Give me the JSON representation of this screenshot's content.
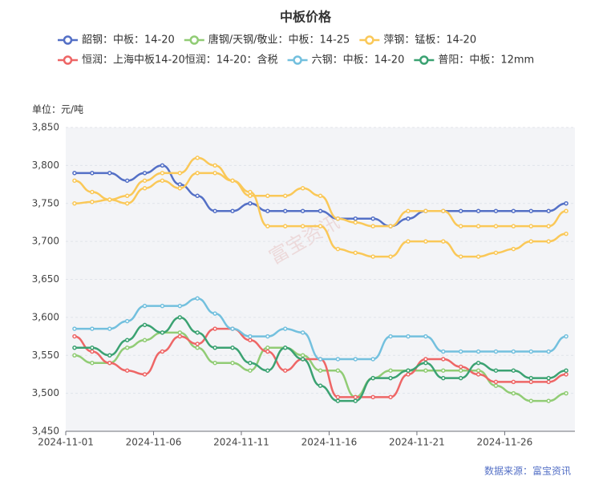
{
  "chart_data": {
    "type": "line",
    "title": "中板价格",
    "unit_label": "单位：元/吨",
    "source": "数据来源：富宝资讯",
    "watermark": "富宝资讯",
    "categories": [
      "2024-11-01",
      null,
      null,
      null,
      null,
      "2024-11-06",
      null,
      null,
      null,
      null,
      "2024-11-11",
      null,
      null,
      null,
      null,
      "2024-11-16",
      null,
      null,
      null,
      null,
      "2024-11-21",
      null,
      null,
      null,
      null,
      "2024-11-26",
      null,
      null,
      null
    ],
    "ylim": [
      3450,
      3850
    ],
    "yticks": [
      {
        "value": 3450,
        "label": "3,450"
      },
      {
        "value": 3500,
        "label": "3,500"
      },
      {
        "value": 3550,
        "label": "3,550"
      },
      {
        "value": 3600,
        "label": "3,600"
      },
      {
        "value": 3650,
        "label": "3,650"
      },
      {
        "value": 3700,
        "label": "3,700"
      },
      {
        "value": 3750,
        "label": "3,750"
      },
      {
        "value": 3800,
        "label": "3,800"
      },
      {
        "value": 3850,
        "label": "3,850"
      }
    ],
    "grid": true,
    "smooth": true,
    "series": [
      {
        "name": "韶钢：中板：14-20",
        "color": "#5470c6",
        "values": [
          3790,
          3790,
          3790,
          3780,
          3790,
          3800,
          3775,
          3760,
          3740,
          3740,
          3750,
          3740,
          3740,
          3740,
          3740,
          3730,
          3730,
          3730,
          3720,
          3730,
          3740,
          3740,
          3740,
          3740,
          3740,
          3740,
          3740,
          3740,
          3750
        ]
      },
      {
        "name": "唐钢/天钢/敬业：中板：14-25",
        "color": "#91cc75",
        "values": [
          3550,
          3540,
          3540,
          3560,
          3570,
          3580,
          3580,
          3560,
          3540,
          3540,
          3530,
          3560,
          3560,
          3550,
          3530,
          3530,
          3495,
          3520,
          3530,
          3530,
          3530,
          3530,
          3530,
          3530,
          3510,
          3500,
          3490,
          3490,
          3500
        ]
      },
      {
        "name": "萍钢：锰板：14-20",
        "color": "#fac858",
        "values": [
          3750,
          3752,
          3755,
          3760,
          3780,
          3790,
          3790,
          3810,
          3800,
          3780,
          3760,
          3760,
          3760,
          3770,
          3760,
          3730,
          3725,
          3720,
          3720,
          3740,
          3740,
          3740,
          3720,
          3720,
          3720,
          3720,
          3720,
          3720,
          3740
        ]
      },
      {
        "name": "恒润：上海中板14-20恒润：14-20：含税",
        "color": "#ee6666",
        "values": [
          3575,
          3555,
          3540,
          3530,
          3525,
          3555,
          3575,
          3565,
          3585,
          3585,
          3570,
          3555,
          3530,
          3545,
          3545,
          3495,
          3495,
          3495,
          3495,
          3525,
          3545,
          3545,
          3535,
          3525,
          3515,
          3515,
          3515,
          3515,
          3525
        ]
      },
      {
        "name": "六钢：中板：14-20",
        "color": "#73c0de",
        "values": [
          3585,
          3585,
          3585,
          3595,
          3615,
          3615,
          3615,
          3625,
          3605,
          3585,
          3575,
          3575,
          3585,
          3580,
          3545,
          3545,
          3545,
          3545,
          3575,
          3575,
          3575,
          3555,
          3555,
          3555,
          3555,
          3555,
          3555,
          3555,
          3575
        ]
      },
      {
        "name": "普阳：中板：12mm",
        "color": "#3ba272",
        "values": [
          3560,
          3560,
          3550,
          3570,
          3590,
          3580,
          3600,
          3580,
          3560,
          3560,
          3540,
          3530,
          3560,
          3545,
          3510,
          3490,
          3490,
          3520,
          3520,
          3530,
          3540,
          3520,
          3520,
          3540,
          3530,
          3530,
          3520,
          3520,
          3530
        ]
      },
      {
        "color": "#fac858",
        "values": [
          3780,
          3765,
          3755,
          3750,
          3770,
          3780,
          3770,
          3790,
          3790,
          3780,
          3765,
          3720,
          3720,
          3720,
          3720,
          3690,
          3685,
          3680,
          3680,
          3700,
          3700,
          3700,
          3680,
          3680,
          3685,
          3690,
          3700,
          3700,
          3710
        ]
      }
    ]
  }
}
